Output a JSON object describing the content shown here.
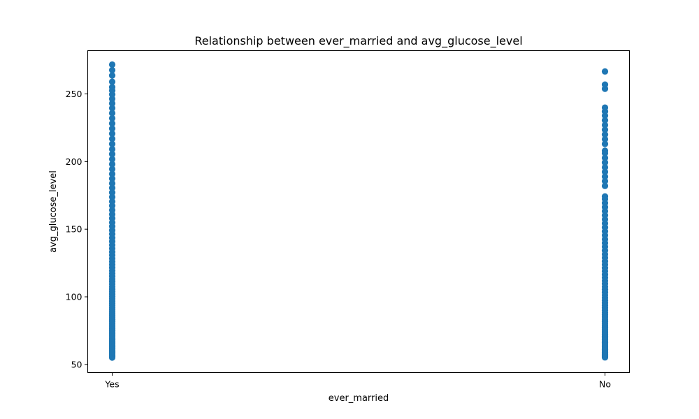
{
  "chart_data": {
    "type": "scatter",
    "title": "Relationship between ever_married and avg_glucose_level",
    "xlabel": "ever_married",
    "ylabel": "avg_glucose_level",
    "categories": [
      "Yes",
      "No"
    ],
    "ylim": [
      44,
      282
    ],
    "yticks": [
      50,
      100,
      150,
      200,
      250
    ],
    "ytick_labels": [
      "50",
      "100",
      "150",
      "200",
      "250"
    ],
    "grid": false,
    "legend": "none",
    "point_color": "#1f77b4",
    "series": [
      {
        "category": "Yes",
        "y": [
          55.1,
          55.8,
          56.4,
          57.2,
          58.0,
          58.9,
          59.7,
          60.6,
          61.5,
          62.4,
          63.3,
          64.2,
          65.1,
          66.0,
          67.1,
          68.2,
          69.3,
          70.4,
          71.6,
          72.8,
          74.0,
          75.2,
          76.5,
          77.8,
          79.1,
          80.4,
          81.8,
          83.2,
          84.6,
          86.0,
          87.5,
          89.0,
          90.5,
          92.0,
          93.6,
          95.2,
          96.8,
          98.5,
          100.2,
          102.0,
          103.8,
          105.6,
          107.5,
          109.4,
          111.3,
          113.2,
          115.2,
          117.3,
          119.4,
          121.6,
          123.8,
          126.1,
          128.4,
          130.8,
          133.2,
          135.7,
          138.3,
          140.9,
          143.6,
          146.4,
          149.2,
          152.1,
          155.0,
          158.0,
          161.0,
          164.1,
          167.3,
          170.5,
          173.8,
          177.1,
          180.5,
          183.9,
          187.4,
          190.9,
          194.5,
          198.1,
          201.8,
          205.5,
          209.2,
          213.0,
          216.8,
          220.6,
          224.4,
          228.2,
          232.0,
          235.8,
          239.5,
          243.0,
          246.4,
          249.6,
          252.5,
          255.0,
          259.0,
          263.6,
          267.6,
          271.7
        ]
      },
      {
        "category": "No",
        "y": [
          55.2,
          55.9,
          56.6,
          57.4,
          58.2,
          59.1,
          60.0,
          60.9,
          61.9,
          62.9,
          63.9,
          65.0,
          66.1,
          67.2,
          68.4,
          69.6,
          70.8,
          72.1,
          73.4,
          74.7,
          76.1,
          77.5,
          78.9,
          80.4,
          81.9,
          83.5,
          85.1,
          86.7,
          88.4,
          90.1,
          91.9,
          93.7,
          95.5,
          97.4,
          99.3,
          101.3,
          103.3,
          105.4,
          107.5,
          109.7,
          111.9,
          114.2,
          116.5,
          118.9,
          121.3,
          123.8,
          126.3,
          128.9,
          131.5,
          134.2,
          137.0,
          139.8,
          142.6,
          145.5,
          148.4,
          151.3,
          154.3,
          157.3,
          160.3,
          163.3,
          166.3,
          169.3,
          172.3,
          174.2,
          182.0,
          185.5,
          188.9,
          192.4,
          195.8,
          199.3,
          202.7,
          206.2,
          208.0,
          213.0,
          216.5,
          220.0,
          223.5,
          227.0,
          230.5,
          234.0,
          237.0,
          239.9,
          253.8,
          256.9,
          266.6
        ]
      }
    ]
  }
}
